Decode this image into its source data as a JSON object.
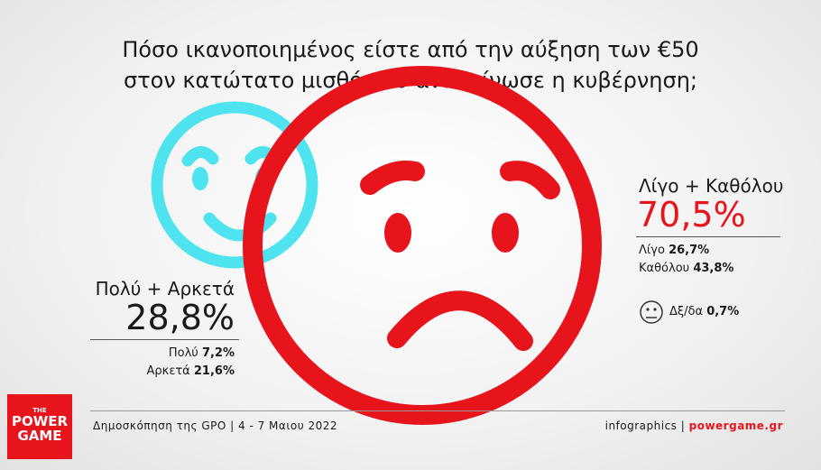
{
  "header": {
    "title_lines": [
      "Πόσο ικανοποιημένος είστε από την αύξηση των €50",
      "στον κατώτατο μισθό που ανακοίνωσε η κυβέρνηση;"
    ]
  },
  "satisfied": {
    "label": "Πολύ + Αρκετά",
    "total": "28,8%",
    "items": [
      {
        "label": "Πολύ",
        "value": "7,2%"
      },
      {
        "label": "Αρκετά",
        "value": "21,6%"
      }
    ]
  },
  "dissatisfied": {
    "label": "Λίγο + Καθόλου",
    "total": "70,5%",
    "items": [
      {
        "label": "Λίγο",
        "value": "26,7%"
      },
      {
        "label": "Καθόλου",
        "value": "43,8%"
      }
    ]
  },
  "no_answer": {
    "label": "Δξ/δα",
    "value": "0,7%"
  },
  "footer": {
    "source": "Δημοσκόπηση της GPO | 4 - 7 Μαιου 2022",
    "credit": "infographics |",
    "site": "powergame.gr"
  },
  "logo": {
    "lines": [
      "THE",
      "POWER",
      "GAME"
    ]
  }
}
